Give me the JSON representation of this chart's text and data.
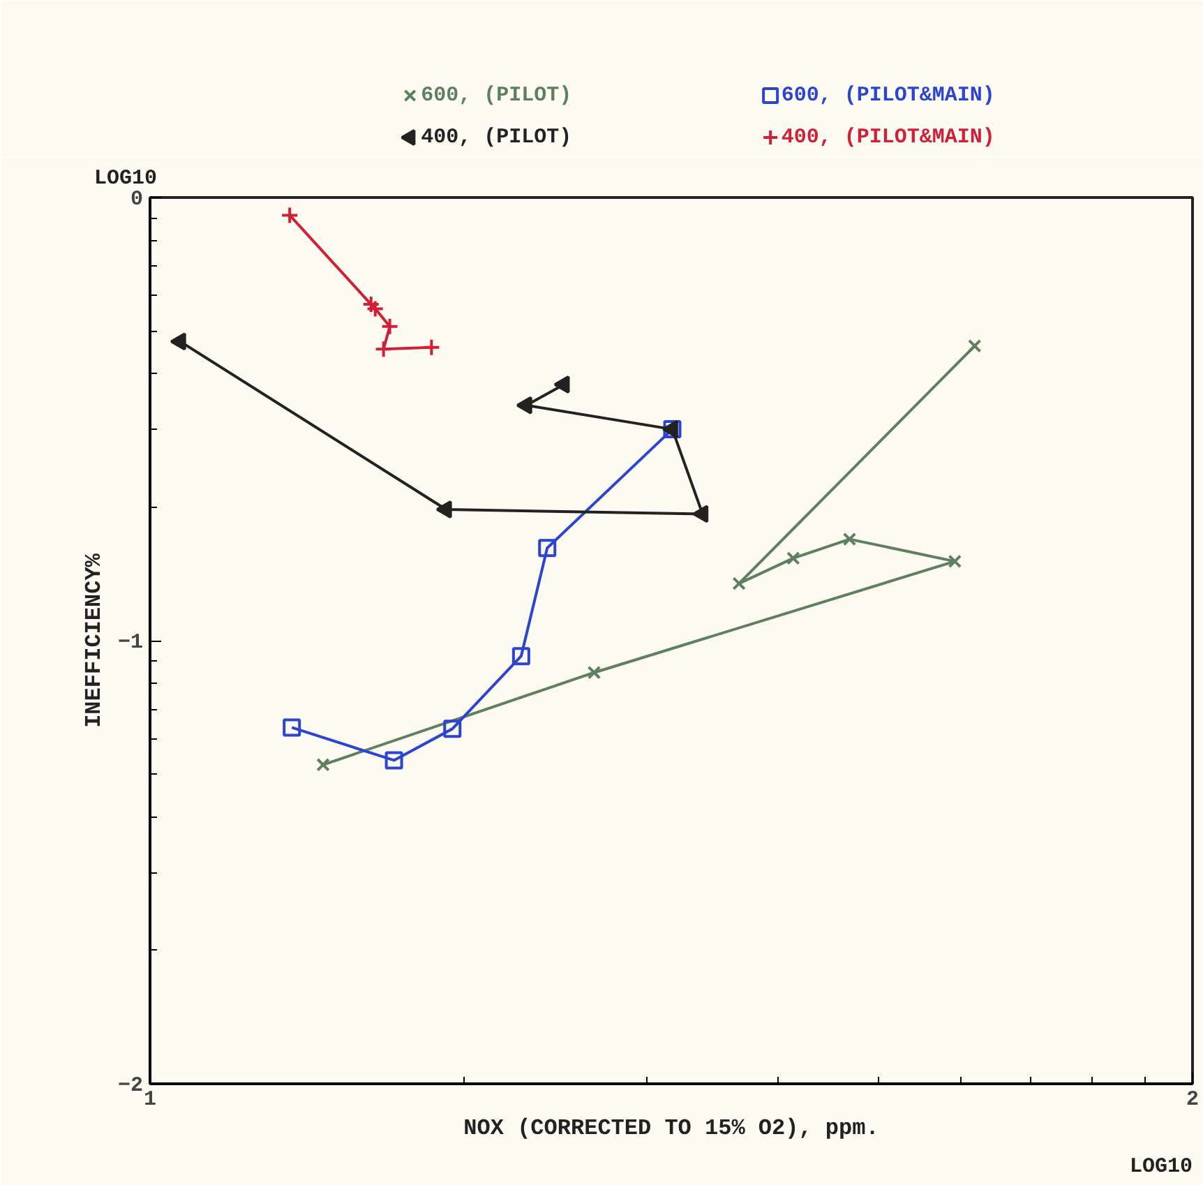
{
  "chart_data": {
    "type": "line",
    "xlabel": "NOX (CORRECTED TO 15% O2), ppm.",
    "ylabel": "INEFFICIENCY%",
    "annotations": [
      "LOG10",
      "LOG10"
    ],
    "xlim": [
      1,
      2
    ],
    "ylim": [
      -2,
      0
    ],
    "xticks": [
      1,
      {
        "value": 1.301,
        "label": null
      },
      {
        "value": 1.477,
        "label": null
      },
      {
        "value": 1.602,
        "label": null
      },
      {
        "value": 1.699,
        "label": null
      },
      {
        "value": 1.778,
        "label": null
      },
      {
        "value": 1.845,
        "label": null
      },
      {
        "value": 1.903,
        "label": null
      },
      {
        "value": 1.954,
        "label": null
      },
      2
    ],
    "yticks": [
      -2,
      {
        "value": -1.699,
        "label": null
      },
      {
        "value": -1.523,
        "label": null
      },
      {
        "value": -1.398,
        "label": null
      },
      {
        "value": -1.301,
        "label": null
      },
      {
        "value": -1.222,
        "label": null
      },
      {
        "value": -1.155,
        "label": null
      },
      {
        "value": -1.097,
        "label": null
      },
      {
        "value": -1.046,
        "label": null
      },
      -1,
      {
        "value": -0.699,
        "label": null
      },
      {
        "value": -0.523,
        "label": null
      },
      {
        "value": -0.398,
        "label": null
      },
      {
        "value": -0.301,
        "label": null
      },
      {
        "value": -0.222,
        "label": null
      },
      {
        "value": -0.155,
        "label": null
      },
      {
        "value": -0.097,
        "label": null
      },
      {
        "value": -0.046,
        "label": null
      },
      0
    ],
    "grid": false,
    "legend": "top",
    "line_style": "solid",
    "series": [
      {
        "name": "600, (PILOT)",
        "color": "#5e8060",
        "marker": "x",
        "x": [
          1.166,
          1.426,
          1.772,
          1.671,
          1.617,
          1.565,
          1.791
        ],
        "values": [
          -1.28,
          -1.072,
          -0.821,
          -0.771,
          -0.814,
          -0.871,
          -0.335
        ]
      },
      {
        "name": "600, (PILOT&MAIN)",
        "color": "#2b45d0",
        "marker": "square",
        "x": [
          1.136,
          1.234,
          1.29,
          1.356,
          1.381,
          1.501
        ],
        "values": [
          -1.196,
          -1.27,
          -1.199,
          -1.035,
          -0.791,
          -0.523
        ]
      },
      {
        "name": "400, (PILOT)",
        "color": "#222222",
        "marker": "triangle",
        "x": [
          1.029,
          1.284,
          1.53,
          1.501,
          1.361,
          1.397
        ],
        "values": [
          -0.325,
          -0.704,
          -0.714,
          -0.523,
          -0.469,
          -0.422
        ]
      },
      {
        "name": "400, (PILOT&MAIN)",
        "color": "#d02038",
        "marker": "cross",
        "x": [
          1.134,
          1.212,
          1.216,
          1.23,
          1.224,
          1.27
        ],
        "values": [
          -0.04,
          -0.241,
          -0.251,
          -0.291,
          -0.342,
          -0.338
        ]
      }
    ]
  }
}
